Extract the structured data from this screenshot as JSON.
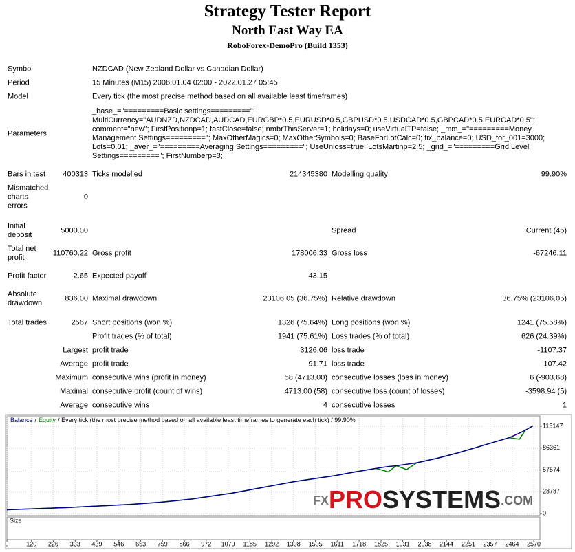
{
  "header": {
    "title": "Strategy Tester Report",
    "subtitle": "North East Way EA",
    "server": "RoboForex-DemoPro (Build 1353)"
  },
  "info": [
    {
      "label": "Symbol",
      "value": "NZDCAD (New Zealand Dollar vs Canadian Dollar)"
    },
    {
      "label": "Period",
      "value": "15 Minutes (M15) 2006.01.04 02:00 - 2022.01.27 05:45"
    },
    {
      "label": "Model",
      "value": "Every tick (the most precise method based on all available least timeframes)"
    },
    {
      "label": "Parameters",
      "value": "_base_=\"=========Basic settings=========\"; MultiCurrency=\"AUDNZD,NZDCAD,AUDCAD,EURGBP*0.5,EURUSD*0.5,GBPUSD*0.5,USDCAD*0.5,GBPCAD*0.5,EURCAD*0.5\"; comment=\"new\"; FirstPositionp=1; fastClose=false; nmbrThisServer=1; holidays=0; useVirtualTP=false; _mm_=\"=========Money Management Settings=========\"; MaxOtherMagics=0; MaxOtherSymbols=0; BaseForLotCalc=0; fix_balance=0; USD_for_001=3000; Lots=0.01; _aver_=\"=========Averaging Settings=========\"; UseUnloss=true; LotsMartinp=2.5; _grid_=\"=========Grid Level Settings=========\"; FirstNumberp=3;"
    }
  ],
  "stats": [
    {
      "col1": {
        "label": "Bars in test",
        "value": "400313"
      },
      "col2": {
        "label": "Ticks modelled",
        "value": "214345380"
      },
      "col3": {
        "label": "Modelling quality",
        "value": "99.90%"
      }
    },
    {
      "col1": {
        "label": "Mismatched charts errors",
        "value": "0"
      }
    },
    {
      "col1": {
        "label": "Initial deposit",
        "value": "5000.00"
      },
      "col3": {
        "label": "Spread",
        "value": "Current (45)"
      }
    },
    {
      "col1": {
        "label": "Total net profit",
        "value": "110760.22"
      },
      "col2": {
        "label": "Gross profit",
        "value": "178006.33"
      },
      "col3": {
        "label": "Gross loss",
        "value": "-67246.11"
      }
    },
    {
      "col1": {
        "label": "Profit factor",
        "value": "2.65"
      },
      "col2": {
        "label": "Expected payoff",
        "value": "43.15"
      }
    },
    {
      "col1": {
        "label": "Absolute drawdown",
        "value": "836.00"
      },
      "col2": {
        "label": "Maximal drawdown",
        "value": "23106.05 (36.75%)"
      },
      "col3": {
        "label": "Relative drawdown",
        "value": "36.75% (23106.05)"
      }
    },
    {
      "col1": {
        "label": "Total trades",
        "value": "2567"
      },
      "col2": {
        "label": "Short positions (won %)",
        "value": "1326 (75.64%)"
      },
      "col3": {
        "label": "Long positions (won %)",
        "value": "1241 (75.58%)"
      }
    },
    {
      "col2": {
        "label": "Profit trades (% of total)",
        "value": "1941 (75.61%)"
      },
      "col3": {
        "label": "Loss trades (% of total)",
        "value": "626 (24.39%)"
      }
    },
    {
      "col1": {
        "label": "Largest"
      },
      "col2": {
        "label": "profit trade",
        "value": "3126.06"
      },
      "col3": {
        "label": "loss trade",
        "value": "-1107.37"
      }
    },
    {
      "col1": {
        "label": "Average"
      },
      "col2": {
        "label": "profit trade",
        "value": "91.71"
      },
      "col3": {
        "label": "loss trade",
        "value": "-107.42"
      }
    },
    {
      "col1": {
        "label": "Maximum"
      },
      "col2": {
        "label": "consecutive wins (profit in money)",
        "value": "58 (4713.00)"
      },
      "col3": {
        "label": "consecutive losses (loss in money)",
        "value": "6 (-903.68)"
      }
    },
    {
      "col1": {
        "label": "Maximal"
      },
      "col2": {
        "label": "consecutive profit (count of wins)",
        "value": "4713.00 (58)"
      },
      "col3": {
        "label": "consecutive loss (count of losses)",
        "value": "-3598.94 (5)"
      }
    },
    {
      "col1": {
        "label": "Average"
      },
      "col2": {
        "label": "consecutive wins",
        "value": "4"
      },
      "col3": {
        "label": "consecutive losses",
        "value": "1"
      }
    }
  ],
  "chart_data": {
    "type": "line",
    "legend_separator": "/",
    "caption": "/ Every tick (the most precise method based on all available least timeframes to generate each tick) / 99.90%",
    "size_label": "Size",
    "watermark": {
      "prefix": "FX",
      "brand": "PRO",
      "brand2": "SYSTEMS",
      "suffix": ".COM"
    },
    "x": [
      0,
      150,
      300,
      450,
      600,
      750,
      900,
      1000,
      1100,
      1200,
      1300,
      1400,
      1500,
      1600,
      1700,
      1800,
      1860,
      1900,
      1950,
      2000,
      2100,
      2200,
      2300,
      2400,
      2450,
      2500,
      2530,
      2567
    ],
    "series": [
      {
        "name": "Balance",
        "color": "#00008b",
        "values": [
          5000,
          6500,
          8000,
          10000,
          12000,
          15000,
          19000,
          23000,
          27000,
          32000,
          37000,
          42000,
          46000,
          50000,
          55000,
          59500,
          62000,
          63000,
          65000,
          67000,
          73000,
          80000,
          88000,
          96000,
          100000,
          106000,
          110000,
          115760
        ]
      },
      {
        "name": "Equity",
        "color": "#008000",
        "values": [
          5000,
          6500,
          8000,
          10000,
          12000,
          15000,
          19000,
          23000,
          27000,
          32000,
          37000,
          42000,
          46000,
          50000,
          55000,
          59500,
          55000,
          63000,
          58000,
          67000,
          73000,
          80000,
          88000,
          96000,
          100000,
          98000,
          110000,
          115760
        ]
      }
    ],
    "xlim": [
      0,
      2600
    ],
    "xticks": [
      0,
      120,
      226,
      333,
      439,
      546,
      653,
      759,
      866,
      972,
      1079,
      1185,
      1292,
      1398,
      1505,
      1611,
      1718,
      1825,
      1931,
      2038,
      2144,
      2251,
      2357,
      2464,
      2570
    ],
    "ylim": [
      -2700,
      128700
    ],
    "yticks": [
      0,
      28787,
      57574,
      86361,
      115147
    ],
    "grid": true
  }
}
